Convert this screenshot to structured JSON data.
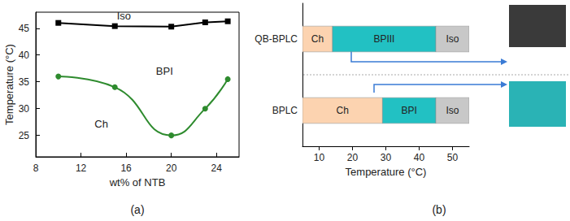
{
  "chart_data": [
    {
      "type": "line",
      "caption": "(a)",
      "x_label": "wt% of NTB",
      "y_label": "Temperature (°C)",
      "x": [
        10,
        15,
        20,
        23,
        25
      ],
      "series": [
        {
          "color": "#000000",
          "marker": "square",
          "line_style": "solid",
          "values": [
            46,
            45.4,
            45.3,
            46.1,
            46.3
          ]
        },
        {
          "color": "#2e8b2e",
          "marker": "circle",
          "line_style": "smooth",
          "values": [
            36,
            34,
            25,
            30,
            35.5
          ]
        }
      ],
      "xlim": [
        8,
        26
      ],
      "xticks": [
        8,
        12,
        16,
        20,
        24
      ],
      "ylim": [
        21,
        48
      ],
      "yticks": [
        25,
        30,
        35,
        40,
        45
      ],
      "annotations": [
        {
          "text": "Iso",
          "x": 15.8,
          "y": 47.3
        },
        {
          "text": "BPI",
          "x": 19.4,
          "y": 37
        },
        {
          "text": "Ch",
          "x": 13.8,
          "y": 27.2
        }
      ]
    },
    {
      "type": "bar",
      "orientation": "horizontal",
      "caption": "(b)",
      "x_label": "Temperature (°C)",
      "categories": [
        "QB-BPLC",
        "BPLC"
      ],
      "segments": [
        {
          "row": "QB-BPLC",
          "label": "Ch",
          "start": 5,
          "end": 14,
          "color": "#fcd3b0"
        },
        {
          "row": "QB-BPLC",
          "label": "BPIII",
          "start": 14,
          "end": 45,
          "color": "#22c1c3"
        },
        {
          "row": "QB-BPLC",
          "label": "Iso",
          "start": 45,
          "end": 55,
          "color": "#c8c8c8"
        },
        {
          "row": "BPLC",
          "label": "Ch",
          "start": 5,
          "end": 29,
          "color": "#fcd3b0"
        },
        {
          "row": "BPLC",
          "label": "BPI",
          "start": 29,
          "end": 45,
          "color": "#22c1c3"
        },
        {
          "row": "BPLC",
          "label": "Iso",
          "start": 45,
          "end": 55,
          "color": "#c8c8c8"
        }
      ],
      "xlim": [
        5,
        55
      ],
      "xticks": [
        10,
        20,
        30,
        40,
        50
      ]
    }
  ]
}
